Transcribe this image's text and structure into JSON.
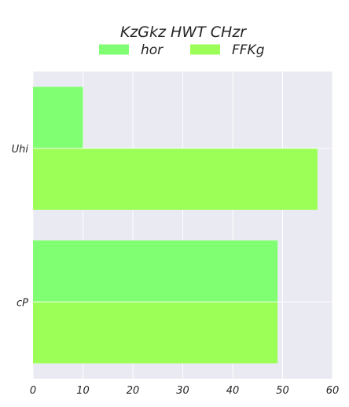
{
  "chart_data": {
    "type": "bar",
    "orientation": "horizontal",
    "title": "KzGkz HWT CHzr",
    "xlabel": "",
    "ylabel": "",
    "categories": [
      "Uhi",
      "cP"
    ],
    "series": [
      {
        "name": "hor",
        "values": [
          10,
          49
        ],
        "color": "#80ff72"
      },
      {
        "name": "FFKg",
        "values": [
          57,
          49
        ],
        "color": "#9cff57"
      }
    ],
    "xlim": [
      0,
      60
    ],
    "xticks": [
      0,
      10,
      20,
      30,
      40,
      50,
      60
    ],
    "grid": true,
    "legend_placement": "top-center",
    "background_color": "#eaeaf2",
    "grid_color": "#ffffff"
  }
}
